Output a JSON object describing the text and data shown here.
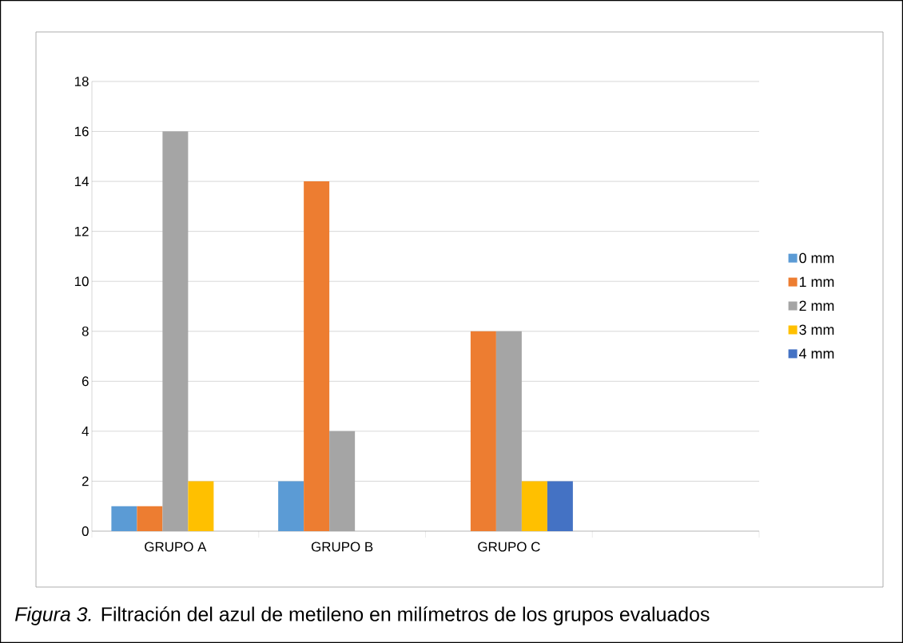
{
  "chart_data": {
    "type": "bar",
    "categories": [
      "GRUPO A",
      "GRUPO B",
      "GRUPO C",
      null
    ],
    "series": [
      {
        "name": "0 mm",
        "color": "#5b9bd5",
        "values": [
          1,
          2,
          0,
          null
        ]
      },
      {
        "name": "1 mm",
        "color": "#ed7d31",
        "values": [
          1,
          14,
          8,
          null
        ]
      },
      {
        "name": "2 mm",
        "color": "#a5a5a5",
        "values": [
          16,
          4,
          8,
          null
        ]
      },
      {
        "name": "3 mm",
        "color": "#ffc000",
        "values": [
          2,
          0,
          2,
          null
        ]
      },
      {
        "name": "4 mm",
        "color": "#4472c4",
        "values": [
          0,
          0,
          2,
          null
        ]
      }
    ],
    "ylim": [
      0,
      18
    ],
    "yticks": [
      0,
      2,
      4,
      6,
      8,
      10,
      12,
      14,
      16,
      18
    ],
    "grid": "y",
    "legend": "right",
    "annotations": [
      "*Figura 3.*  Filtración del azul de metileno en milímetros de los grupos evaluados"
    ]
  }
}
